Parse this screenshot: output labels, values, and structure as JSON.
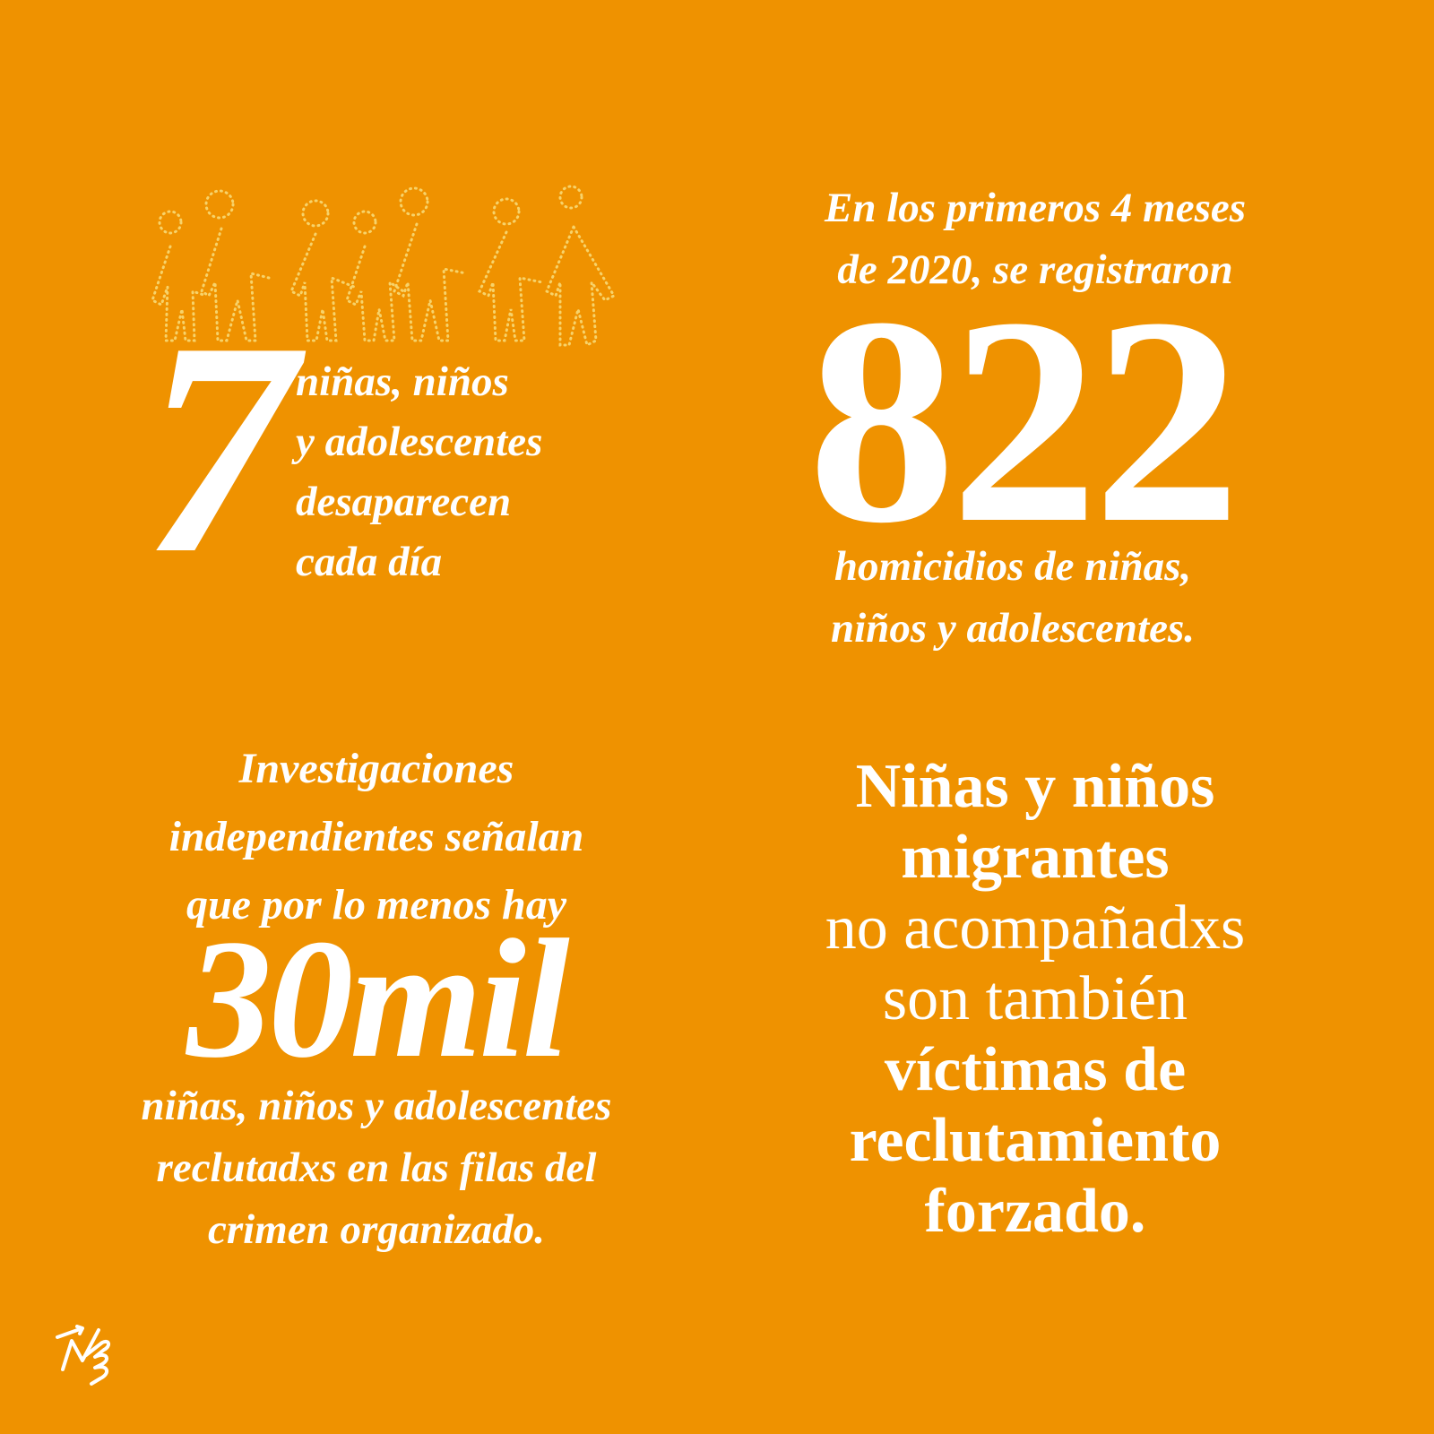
{
  "colors": {
    "background": "#EF9200",
    "text": "#FFFFFF",
    "figures": "#F7D36A"
  },
  "illustration": {
    "icon": "dotted-children-holding-hands-icon",
    "figure_count": 7
  },
  "stat1": {
    "number": "7",
    "lines": [
      "niñas, niños",
      "y adolescentes",
      "desaparecen",
      "cada día"
    ]
  },
  "stat2": {
    "intro": [
      "En los primeros 4 meses",
      "de 2020, se registraron"
    ],
    "number": "822",
    "lines": [
      "homicidios de niñas,",
      "niños y adolescentes."
    ]
  },
  "stat3": {
    "intro": [
      "Investigaciones",
      "independientes señalan",
      "que por lo menos hay"
    ],
    "number": "30mil",
    "lines": [
      "niñas, niños y adolescentes",
      "reclutadxs en las filas del",
      "crimen organizado."
    ]
  },
  "stat4": {
    "bold_lines": [
      "Niñas y niños",
      "migrantes"
    ],
    "regular_lines": [
      "no acompañadxs",
      "son también"
    ],
    "bold_lines_end": [
      "víctimas de",
      "reclutamiento",
      "forzado."
    ]
  },
  "logo": {
    "icon": "hand-signature-logo-icon"
  }
}
